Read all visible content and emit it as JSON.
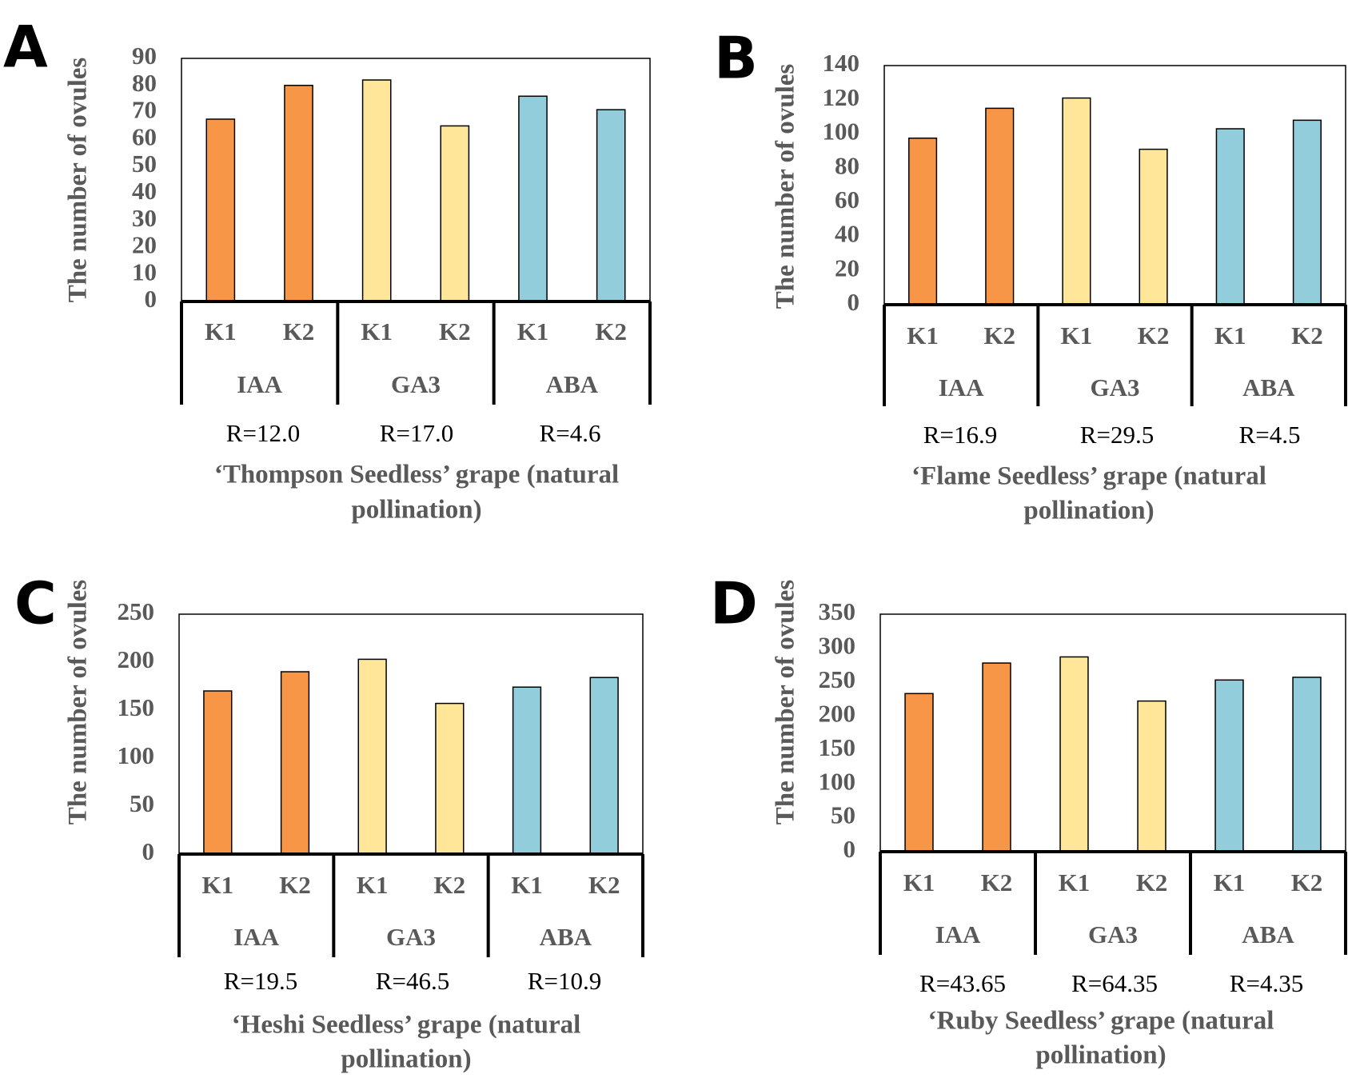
{
  "chart_data": [
    {
      "panel": "A",
      "type": "bar",
      "ylabel": "The number of ovules",
      "ylim": [
        0,
        90
      ],
      "yticks": [
        0,
        10,
        20,
        30,
        40,
        50,
        60,
        70,
        80,
        90
      ],
      "subcategories": [
        "K1",
        "K2",
        "K1",
        "K2",
        "K1",
        "K2"
      ],
      "groups": [
        "IAA",
        "GA3",
        "ABA"
      ],
      "values": [
        67.5,
        80,
        82,
        65,
        76,
        71
      ],
      "colors": [
        "#F79646",
        "#F79646",
        "#FFE699",
        "#FFE699",
        "#92CDDC",
        "#92CDDC"
      ],
      "r_values": [
        "R=12.0",
        "R=17.0",
        "R=4.6"
      ],
      "caption": [
        "‘Thompson Seedless’ grape (natural",
        "pollination)"
      ]
    },
    {
      "panel": "B",
      "type": "bar",
      "ylabel": "The number of ovules",
      "ylim": [
        0,
        140
      ],
      "yticks": [
        0,
        20,
        40,
        60,
        80,
        100,
        120,
        140
      ],
      "subcategories": [
        "K1",
        "K2",
        "K1",
        "K2",
        "K1",
        "K2"
      ],
      "groups": [
        "IAA",
        "GA3",
        "ABA"
      ],
      "values": [
        97.5,
        115,
        121,
        91,
        103,
        108
      ],
      "colors": [
        "#F79646",
        "#F79646",
        "#FFE699",
        "#FFE699",
        "#92CDDC",
        "#92CDDC"
      ],
      "r_values": [
        "R=16.9",
        "R=29.5",
        "R=4.5"
      ],
      "caption": [
        "‘Flame Seedless’ grape (natural",
        "pollination)"
      ]
    },
    {
      "panel": "C",
      "type": "bar",
      "ylabel": "The number of ovules",
      "ylim": [
        0,
        250
      ],
      "yticks": [
        0,
        50,
        100,
        150,
        200,
        250
      ],
      "subcategories": [
        "K1",
        "K2",
        "K1",
        "K2",
        "K1",
        "K2"
      ],
      "groups": [
        "IAA",
        "GA3",
        "ABA"
      ],
      "values": [
        170,
        190,
        203,
        157,
        174,
        184
      ],
      "colors": [
        "#F79646",
        "#F79646",
        "#FFE699",
        "#FFE699",
        "#92CDDC",
        "#92CDDC"
      ],
      "r_values": [
        "R=19.5",
        "R=46.5",
        "R=10.9"
      ],
      "caption": [
        "‘Heshi Seedless’ grape (natural",
        "pollination)"
      ]
    },
    {
      "panel": "D",
      "type": "bar",
      "ylabel": "The number of ovules",
      "ylim": [
        0,
        350
      ],
      "yticks": [
        0,
        50,
        100,
        150,
        200,
        250,
        300,
        350
      ],
      "subcategories": [
        "K1",
        "K2",
        "K1",
        "K2",
        "K1",
        "K2"
      ],
      "groups": [
        "IAA",
        "GA3",
        "ABA"
      ],
      "values": [
        233,
        278,
        287,
        222,
        253,
        257
      ],
      "colors": [
        "#F79646",
        "#F79646",
        "#FFE699",
        "#FFE699",
        "#92CDDC",
        "#92CDDC"
      ],
      "r_values": [
        "R=43.65",
        "R=64.35",
        "R=4.35"
      ],
      "caption": [
        "‘Ruby Seedless’ grape (natural",
        "pollination)"
      ]
    }
  ]
}
